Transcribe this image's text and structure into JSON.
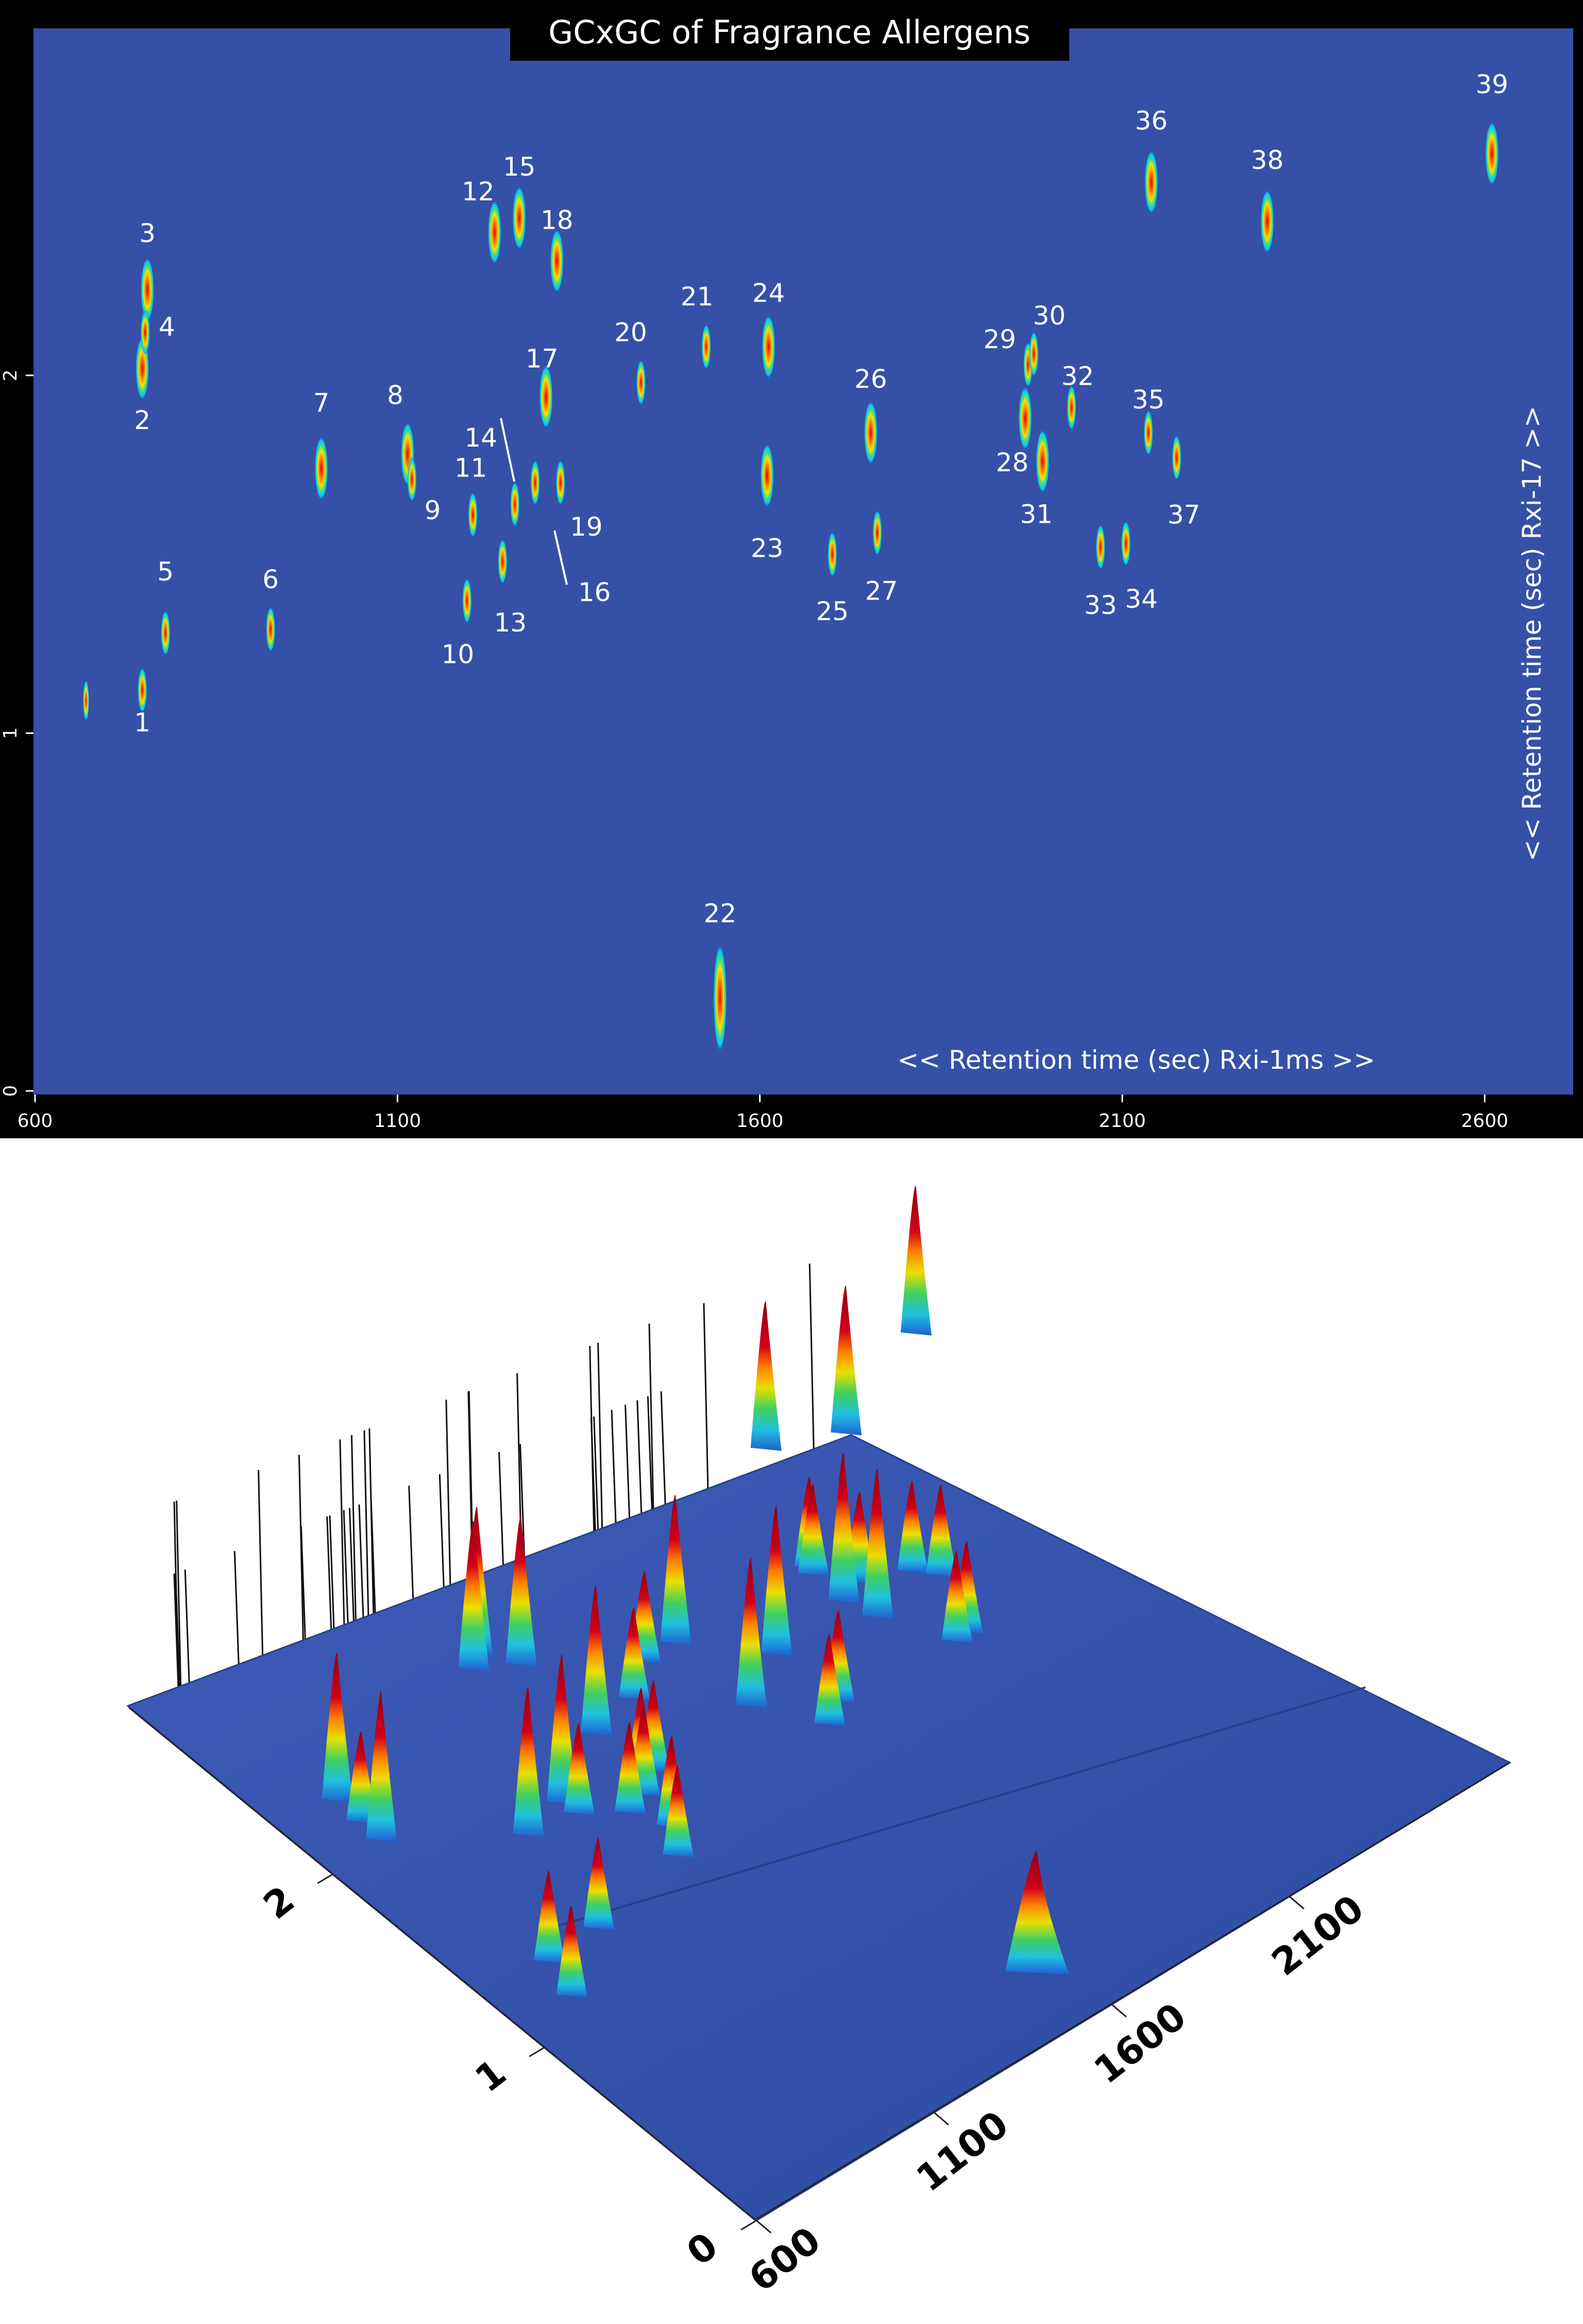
{
  "chart_data": [
    {
      "type": "heatmap",
      "title": "GCxGC of Fragrance Allergens",
      "xlabel": "<< Retention time (sec) Rxi-1ms >>",
      "ylabel": "<< Retention time (sec) Rxi-17 >>",
      "xlim": [
        600,
        2720
      ],
      "ylim": [
        0,
        2.97
      ],
      "xticks": [
        "600",
        "1100",
        "1600",
        "2100",
        "2600"
      ],
      "yticks": [
        "0",
        "1",
        "2"
      ],
      "grid": false,
      "peaks": [
        {
          "label": "1",
          "x": 748,
          "y": 1.12
        },
        {
          "label": "2",
          "x": 748,
          "y": 2.02
        },
        {
          "label": "3",
          "x": 755,
          "y": 2.24
        },
        {
          "label": "4",
          "x": 752,
          "y": 2.12
        },
        {
          "label": "5",
          "x": 780,
          "y": 1.28
        },
        {
          "label": "6",
          "x": 925,
          "y": 1.29
        },
        {
          "label": "7",
          "x": 995,
          "y": 1.74
        },
        {
          "label": "8",
          "x": 1114,
          "y": 1.78
        },
        {
          "label": "9",
          "x": 1120,
          "y": 1.71
        },
        {
          "label": "10",
          "x": 1196,
          "y": 1.37
        },
        {
          "label": "11",
          "x": 1204,
          "y": 1.61
        },
        {
          "label": "12",
          "x": 1234,
          "y": 2.4
        },
        {
          "label": "13",
          "x": 1245,
          "y": 1.48
        },
        {
          "label": "14",
          "x": 1262,
          "y": 1.64
        },
        {
          "label": "15",
          "x": 1268,
          "y": 2.44
        },
        {
          "label": "16",
          "x": 1290,
          "y": 1.7
        },
        {
          "label": "17",
          "x": 1305,
          "y": 1.94
        },
        {
          "label": "18",
          "x": 1320,
          "y": 2.32
        },
        {
          "label": "19",
          "x": 1325,
          "y": 1.7
        },
        {
          "label": "20",
          "x": 1436,
          "y": 1.98
        },
        {
          "label": "21",
          "x": 1526,
          "y": 2.08
        },
        {
          "label": "22",
          "x": 1545,
          "y": 0.26
        },
        {
          "label": "23",
          "x": 1610,
          "y": 1.72
        },
        {
          "label": "24",
          "x": 1612,
          "y": 2.08
        },
        {
          "label": "25",
          "x": 1700,
          "y": 1.5
        },
        {
          "label": "26",
          "x": 1753,
          "y": 1.84
        },
        {
          "label": "27",
          "x": 1762,
          "y": 1.56
        },
        {
          "label": "28",
          "x": 1966,
          "y": 1.88
        },
        {
          "label": "29",
          "x": 1970,
          "y": 2.03
        },
        {
          "label": "30",
          "x": 1978,
          "y": 2.06
        },
        {
          "label": "31",
          "x": 1990,
          "y": 1.76
        },
        {
          "label": "32",
          "x": 2030,
          "y": 1.91
        },
        {
          "label": "33",
          "x": 2070,
          "y": 1.52
        },
        {
          "label": "34",
          "x": 2105,
          "y": 1.53
        },
        {
          "label": "35",
          "x": 2136,
          "y": 1.84
        },
        {
          "label": "36",
          "x": 2140,
          "y": 2.54
        },
        {
          "label": "37",
          "x": 2175,
          "y": 1.77
        },
        {
          "label": "38",
          "x": 2300,
          "y": 2.43
        },
        {
          "label": "39",
          "x": 2610,
          "y": 2.62
        }
      ]
    },
    {
      "type": "area",
      "xticks": [
        "600",
        "1100",
        "1600",
        "2100"
      ],
      "yticks": [
        "0",
        "1",
        "2"
      ]
    }
  ],
  "colors": {
    "plot_background": "#3550a6",
    "frame": "#000000",
    "peak_low": "#00c8ff",
    "peak_mid": "#ffe000",
    "peak_high": "#e00010"
  }
}
